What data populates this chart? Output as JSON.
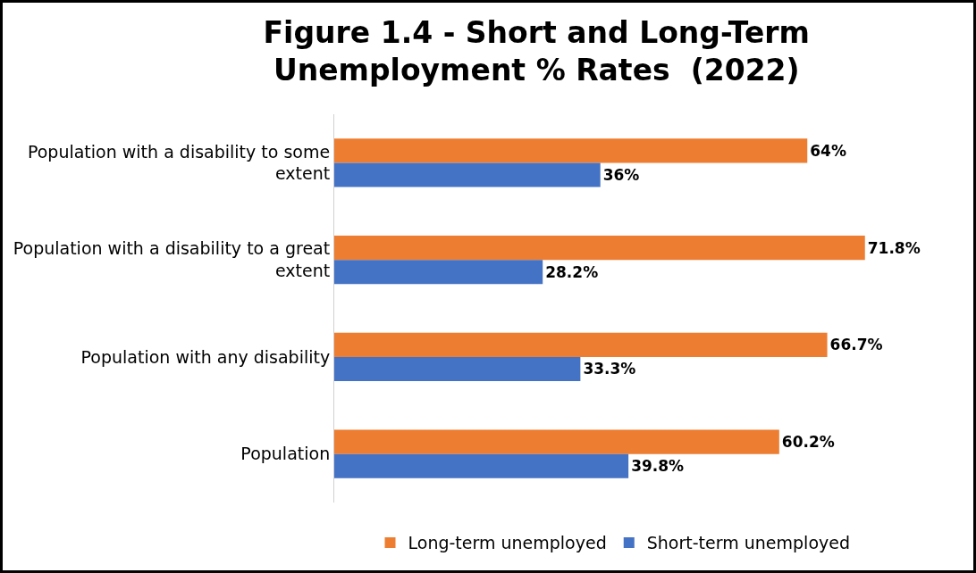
{
  "chart_data": {
    "type": "bar",
    "orientation": "horizontal",
    "title": "Figure 1.4 - Short and Long-Term\nUnemployment % Rates  (2022)",
    "categories": [
      "Population with a disability to some extent",
      "Population with a disability to a great extent",
      "Population with any disability",
      "Population"
    ],
    "series": [
      {
        "name": "Long-term unemployed",
        "color": "#ed7d31",
        "values": [
          64,
          71.8,
          66.7,
          60.2
        ],
        "value_labels": [
          "64%",
          "71.8%",
          "66.7%",
          "60.2%"
        ]
      },
      {
        "name": "Short-term unemployed",
        "color": "#4472c4",
        "values": [
          36,
          28.2,
          33.3,
          39.8
        ],
        "value_labels": [
          "36%",
          "28.2%",
          "33.3%",
          "39.8%"
        ]
      }
    ],
    "legend": "bottom"
  }
}
